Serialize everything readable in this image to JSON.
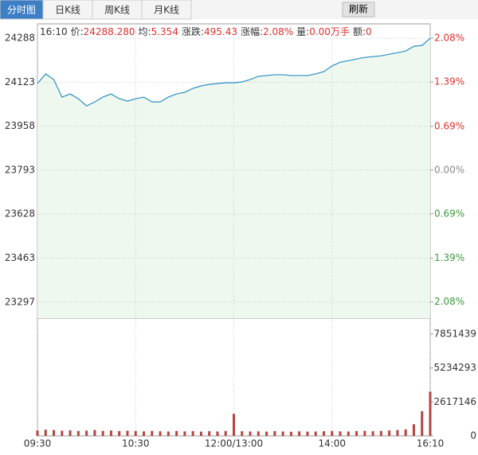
{
  "tabs": [
    "分时图",
    "日K线",
    "周K线",
    "月K线"
  ],
  "refresh": "刷新",
  "info": {
    "time": "16:10",
    "items": [
      {
        "label": "价:",
        "value": "24288.280"
      },
      {
        "label": "均:",
        "value": "5.354"
      },
      {
        "label": "涨跌:",
        "value": "495.43"
      },
      {
        "label": "涨幅:",
        "value": "2.08%"
      },
      {
        "label": "量:",
        "value": "0.00万手"
      },
      {
        "label": "额:",
        "value": "0"
      }
    ]
  },
  "chart_data": {
    "type": "line",
    "series": [
      {
        "color": "#2a8fc4",
        "values": [
          24118,
          24154,
          24133,
          24067,
          24079,
          24061,
          24034,
          24049,
          24067,
          24079,
          24061,
          24052,
          24061,
          24067,
          24049,
          24049,
          24067,
          24079,
          24085,
          24100,
          24109,
          24115,
          24118,
          24121,
          24121,
          24124,
          24133,
          24145,
          24148,
          24151,
          24151,
          24148,
          24148,
          24148,
          24154,
          24163,
          24184,
          24198,
          24204,
          24210,
          24216,
          24219,
          24222,
          24228,
          24234,
          24240,
          24258,
          24261,
          24288
        ]
      }
    ],
    "area_color": "#eef8ee",
    "grid": true,
    "xlim": [
      0,
      48
    ],
    "xticks": [
      {
        "value": 0,
        "label": "09:30"
      },
      {
        "value": 12,
        "label": "10:30"
      },
      {
        "value": 24,
        "label": "12:00/13:00"
      },
      {
        "value": 36,
        "label": "14:00"
      },
      {
        "value": 48,
        "label": "16:10"
      }
    ],
    "ylim": [
      23237,
      24342
    ],
    "yticks": [
      24288,
      24123,
      23958,
      23793,
      23628,
      23463,
      23297
    ],
    "y2lim": [
      -2.337,
      2.307
    ],
    "y2ticks": [
      {
        "value": 2.08,
        "label": "2.08%"
      },
      {
        "value": 1.39,
        "label": "1.39%"
      },
      {
        "value": 0.69,
        "label": "0.69%"
      },
      {
        "value": 0,
        "label": "0.00%"
      },
      {
        "value": -0.69,
        "label": "0.69%"
      },
      {
        "value": -1.39,
        "label": "1.39%"
      },
      {
        "value": -2.08,
        "label": "2.08%"
      }
    ],
    "up_color": "#e0302b",
    "down_color": "#3a9a3a",
    "flat_color": "#888888",
    "volume": {
      "color": "#b8433e",
      "values": [
        420000,
        480000,
        450000,
        400000,
        430000,
        380000,
        410000,
        460000,
        390000,
        420000,
        370000,
        400000,
        380000,
        350000,
        390000,
        360000,
        340000,
        380000,
        350000,
        370000,
        330000,
        360000,
        340000,
        380000,
        1700000,
        360000,
        340000,
        350000,
        330000,
        370000,
        340000,
        320000,
        350000,
        330000,
        340000,
        360000,
        380000,
        350000,
        340000,
        370000,
        390000,
        360000,
        380000,
        420000,
        450000,
        500000,
        900000,
        1900000,
        3400000
      ],
      "lim": [
        0,
        9068000
      ],
      "ticks": [
        7851439,
        5234293,
        2617146,
        0
      ]
    }
  }
}
